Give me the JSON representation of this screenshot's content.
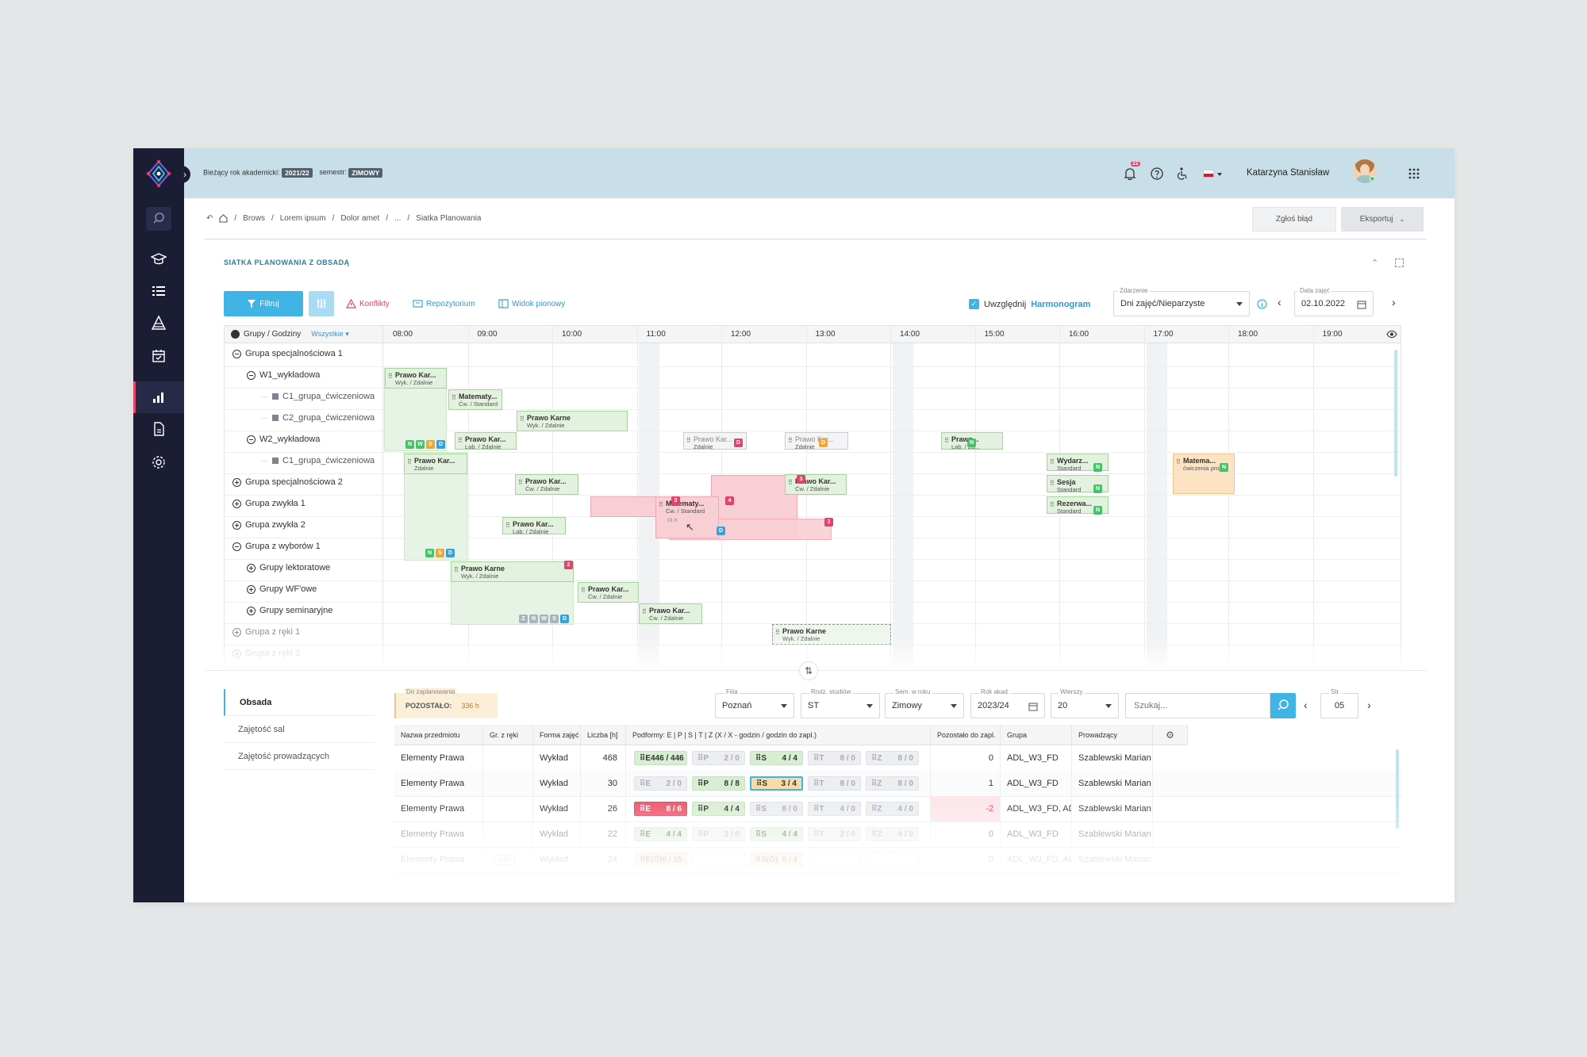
{
  "topbar": {
    "academic_year_label": "Bieżący rok akademicki:",
    "academic_year": "2021/22",
    "semester_label": "semestr:",
    "semester": "ZIMOWY",
    "notifications_count": "22",
    "user_name": "Katarzyna Stanisław"
  },
  "breadcrumb": [
    "Brows",
    "Lorem ipsum",
    "Dolor amet",
    "...",
    "Siatka Planowania"
  ],
  "actions": {
    "report": "Zgłoś błąd",
    "export": "Eksportuj"
  },
  "section_title": "SIATKA PLANOWANIA Z OBSADĄ",
  "toolbar": {
    "filter": "Filtruj",
    "conflicts": "Konflikty",
    "repository": "Repozytorium",
    "vertical_view": "Widok pionowy",
    "include_prefix": "Uwzględnij",
    "include_link": "Harmonogram",
    "event_label": "Zdarzenie",
    "event_value": "Dni zajęć/Nieparzyste",
    "date_label": "Data zajęć",
    "date_value": "02.10.2022"
  },
  "grid": {
    "header_label": "Grupy / Godziny",
    "header_filter": "Wszystkie",
    "hours": [
      "08:00",
      "09:00",
      "10:00",
      "11:00",
      "12:00",
      "13:00",
      "14:00",
      "15:00",
      "16:00",
      "17:00",
      "18:00",
      "19:00"
    ],
    "rows": [
      {
        "label": "Grupa specjalnościowa 1",
        "level": 0,
        "toggle": "minus"
      },
      {
        "label": "W1_wykładowa",
        "level": 1,
        "toggle": "minus"
      },
      {
        "label": "C1_grupa_ćwiczeniowa",
        "level": 2,
        "toggle": "leaf"
      },
      {
        "label": "C2_grupa_ćwiczeniowa",
        "level": 2,
        "toggle": "leaf"
      },
      {
        "label": "W2_wykładowa",
        "level": 1,
        "toggle": "minus"
      },
      {
        "label": "C1_grupa_ćwiczeniowa",
        "level": 2,
        "toggle": "leaf"
      },
      {
        "label": "Grupa specjalnościowa 2",
        "level": 0,
        "toggle": "plus"
      },
      {
        "label": "Grupa zwykła 1",
        "level": 0,
        "toggle": "plus"
      },
      {
        "label": "Grupa zwykła 2",
        "level": 0,
        "toggle": "plus"
      },
      {
        "label": "Grupa z wyborów 1",
        "level": 0,
        "toggle": "minus"
      },
      {
        "label": "Grupy lektoratowe",
        "level": 1,
        "toggle": "plus"
      },
      {
        "label": "Grupy WF'owe",
        "level": 1,
        "toggle": "plus"
      },
      {
        "label": "Grupy seminaryjne",
        "level": 1,
        "toggle": "plus"
      },
      {
        "label": "Grupa z ręki 1",
        "level": 0,
        "toggle": "plus"
      },
      {
        "label": "Grupa z ręki 2",
        "level": 0,
        "toggle": "plus"
      }
    ],
    "events": [
      {
        "title": "Prawo Kar...",
        "sub": "Wyk. / Zdalnie",
        "hours": "01 h"
      },
      {
        "title": "Matematy...",
        "sub": "Ćw. / Standard",
        "hours": "01 h"
      },
      {
        "title": "Prawo Karne",
        "sub": "Wyk. / Zdalnie",
        "hours": "02 h"
      },
      {
        "title": "Prawo Kar...",
        "sub": "Lab. / Zdalnie"
      },
      {
        "title": "Prawo Kar...",
        "sub": "Zdalnie"
      },
      {
        "title": "Prawo Kar...",
        "sub": "Zdalnie"
      },
      {
        "title": "Prawo...",
        "sub": "Lab. / Zd..."
      },
      {
        "title": "Prawo Kar...",
        "sub": "Zdalnie",
        "hours": "01 h"
      },
      {
        "title": "Prawo Kar...",
        "sub": "Ćw. / Zdalnie",
        "hours": "01 h"
      },
      {
        "title": "Prawo Kar...",
        "sub": "Lab. / Zdalnie"
      },
      {
        "title": "Matematy...",
        "sub": "Ćw. / Standard",
        "hours": "01 h"
      },
      {
        "title": "Prawo Kar...",
        "sub": "Ćw. / Zdalnie",
        "hours": "01 h"
      },
      {
        "title": "Wydarz...",
        "sub": "Standard"
      },
      {
        "title": "Sesja",
        "sub": "Standard"
      },
      {
        "title": "Rezerwa...",
        "sub": "Standard"
      },
      {
        "title": "Matema...",
        "sub": "ćwiczenia projekt"
      },
      {
        "title": "Prawo Karne",
        "sub": "Wyk. / Zdalnie",
        "hours": "02 h"
      },
      {
        "title": "Prawo Kar...",
        "sub": "Ćw. / Zdalnie"
      },
      {
        "title": "Prawo Kar...",
        "sub": "Ćw. / Zdalnie"
      },
      {
        "title": "Prawo Karne",
        "sub": "Wyk. / Zdalnie",
        "hours": "02 h"
      }
    ]
  },
  "bottom_tabs": [
    "Obsada",
    "Zajętość sal",
    "Zajętość prowadzących"
  ],
  "planning": {
    "label": "Do zaplanowania",
    "remaining_label": "POZOSTAŁO:",
    "remaining_value": "336 h"
  },
  "filters": {
    "branch": {
      "label": "Filia",
      "value": "Poznań"
    },
    "study_type": {
      "label": "Rodz. studiów",
      "value": "ST"
    },
    "semester": {
      "label": "Sem. w roku",
      "value": "Zimowy"
    },
    "year": {
      "label": "Rok akad.",
      "value": "2023/24"
    },
    "rows": {
      "label": "Wierszy",
      "value": "20"
    },
    "search_placeholder": "Szukaj...",
    "page": {
      "label": "Str.",
      "value": "05"
    }
  },
  "table": {
    "headers": [
      "Nazwa przedmiotu",
      "Gr. z ręki",
      "Forma zajęć",
      "Liczba [h]",
      "Podformy: E | P | S | T | Z   (X / X - godzin / godzin do zapl.)",
      "Pozostało do zapl.",
      "Grupa",
      "Prowadzący"
    ],
    "rows": [
      {
        "name": "Elementy Prawa",
        "manual": "",
        "form": "Wykład",
        "hours": "468",
        "chips": [
          {
            "l": "E",
            "v": "446 / 446",
            "s": "green"
          },
          {
            "l": "P",
            "v": "2 / 0",
            "s": "grey"
          },
          {
            "l": "S",
            "v": "4 / 4",
            "s": "green"
          },
          {
            "l": "T",
            "v": "8 / 0",
            "s": "grey"
          },
          {
            "l": "Z",
            "v": "8 / 0",
            "s": "grey"
          }
        ],
        "remaining": "0",
        "group": "ADL_W3_FD",
        "lecturer": "Szablewski Marian"
      },
      {
        "name": "Elementy Prawa",
        "manual": "",
        "form": "Wykład",
        "hours": "30",
        "chips": [
          {
            "l": "E",
            "v": "2 / 0",
            "s": "grey"
          },
          {
            "l": "P",
            "v": "8 / 8",
            "s": "green"
          },
          {
            "l": "S",
            "v": "3 / 4",
            "s": "orange"
          },
          {
            "l": "T",
            "v": "8 / 0",
            "s": "grey"
          },
          {
            "l": "Z",
            "v": "8 / 0",
            "s": "grey"
          }
        ],
        "remaining": "1",
        "group": "ADL_W3_FD",
        "lecturer": "Szablewski Marian"
      },
      {
        "name": "Elementy Prawa",
        "manual": "",
        "form": "Wykład",
        "hours": "26",
        "chips": [
          {
            "l": "E",
            "v": "8 / 6",
            "s": "red"
          },
          {
            "l": "P",
            "v": "4 / 4",
            "s": "green"
          },
          {
            "l": "S",
            "v": "8 / 0",
            "s": "grey"
          },
          {
            "l": "T",
            "v": "4 / 0",
            "s": "grey"
          },
          {
            "l": "Z",
            "v": "4 / 0",
            "s": "grey"
          }
        ],
        "remaining": "-2",
        "group": "ADL_W3_FD, AD...",
        "lecturer": "Szablewski Marian"
      },
      {
        "name": "Elementy Prawa",
        "manual": "",
        "form": "Wykład",
        "hours": "22",
        "chips": [
          {
            "l": "E",
            "v": "4 / 4",
            "s": "green"
          },
          {
            "l": "P",
            "v": "2 / 0",
            "s": "grey"
          },
          {
            "l": "S",
            "v": "4 / 4",
            "s": "green"
          },
          {
            "l": "T",
            "v": "2 / 0",
            "s": "grey"
          },
          {
            "l": "Z",
            "v": "4 / 0",
            "s": "grey"
          }
        ],
        "remaining": "0",
        "group": "ADL_W3_FD",
        "lecturer": "Szablewski Marian"
      },
      {
        "name": "Elementy Prawa",
        "manual": "OZP",
        "form": "Wykład",
        "hours": "24",
        "chips": [
          {
            "l": "E(Ó)",
            "v": "0 / 15",
            "s": "orange"
          },
          {
            "l": "",
            "v": "",
            "s": "empty"
          },
          {
            "l": "S(Ó)",
            "v": "0 / 4",
            "s": "orange"
          },
          {
            "l": "",
            "v": "",
            "s": "empty"
          },
          {
            "l": "",
            "v": "",
            "s": "empty"
          }
        ],
        "remaining": "0",
        "group": "ADL_W3_FD, AL...",
        "lecturer": "Szablewski Marian"
      }
    ]
  },
  "colors": {
    "accent": "#3fb4e5",
    "sidebar": "#1b1d35",
    "topbar": "#c8dee8",
    "event_green": "#e3f2df",
    "conflict_red": "#e0436b",
    "warning_orange": "#f6dcb4"
  }
}
